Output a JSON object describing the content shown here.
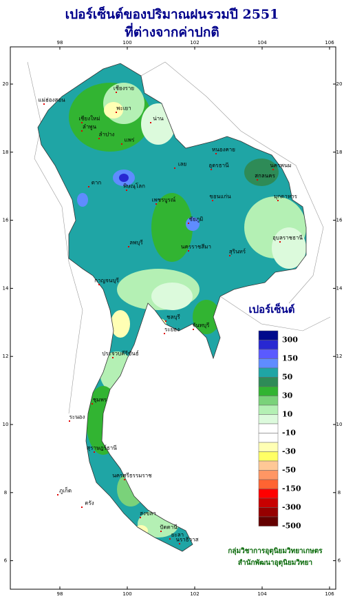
{
  "title": [
    "เปอร์เซ็นต์ของปริมาณฝนรวมปี 2551",
    "ที่ต่างจากค่าปกติ"
  ],
  "lon_ticks": [
    98,
    100,
    102,
    104,
    106
  ],
  "lat_ticks": [
    20,
    18,
    16,
    14,
    12,
    10,
    8,
    6
  ],
  "legend": {
    "title": "เปอร์เซ็นต์",
    "colors": [
      "#000a8c",
      "#2828d2",
      "#5a5aff",
      "#5f8cff",
      "#1fa5a5",
      "#2e8b57",
      "#32b432",
      "#7ad27a",
      "#b4f0b4",
      "#dcfadc",
      "#ffffff",
      "#ffffff",
      "#ffffb4",
      "#ffff64",
      "#ffc896",
      "#ff9664",
      "#ff6432",
      "#ff0000",
      "#c80000",
      "#960000",
      "#640000"
    ],
    "labels": [
      300,
      150,
      50,
      30,
      10,
      -10,
      -30,
      -50,
      -150,
      -300,
      -500
    ]
  },
  "places": [
    "แม่ฮ่องสอน",
    "เชียงราย",
    "พะเยา",
    "น่าน",
    "เชียงใหม่",
    "ลำพูน",
    "ลำปาง",
    "แพร่",
    "หนองคาย",
    "อุดรธานี",
    "นครพนม",
    "สกลนคร",
    "มุกดาหาร",
    "เลย",
    "ตาก",
    "พิษณุโลก",
    "ขอนแก่น",
    "เพชรบูรณ์",
    "ชัยภูมิ",
    "อุบลราชธานี",
    "นครราชสีมา",
    "สุรินทร์",
    "ลพบุรี",
    "กาญจนบุรี",
    "ชลบุรี",
    "ระยอง",
    "จันทบุรี",
    "ประจวบคีรีขันธ์",
    "ชุมพร",
    "ระนอง",
    "สุราษฎร์ธานี",
    "นครศรีธรรมราช",
    "ภูเก็ต",
    "ตรัง",
    "สงขลา",
    "ปัตตานี",
    "ยะลา",
    "นราธิวาส"
  ],
  "credits": [
    "กลุ่มวิชาการอุตุนิยมวิทยาเกษตร",
    "สำนักพัฒนาอุตุนิยมวิทยา"
  ]
}
